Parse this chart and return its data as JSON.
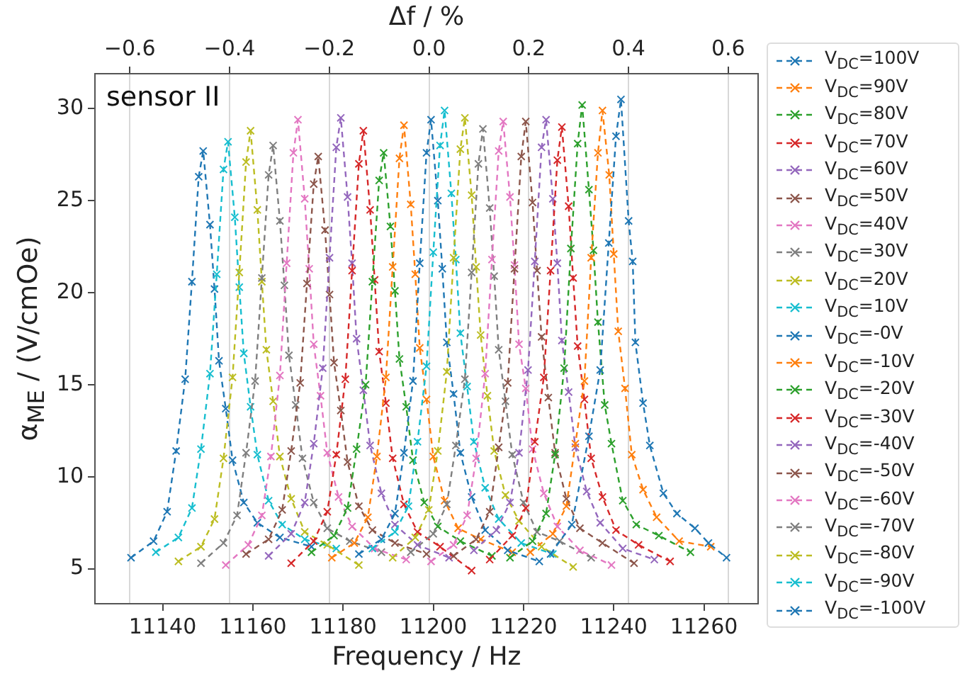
{
  "chart_data": {
    "type": "line",
    "xlabel": "Frequency / Hz",
    "ylabel": "α$_{ME}$ / (V/cmOe)",
    "x2label": "Δf / %",
    "xlim": [
      11125,
      11272
    ],
    "xticks": [
      11140,
      11160,
      11180,
      11200,
      11220,
      11240,
      11260
    ],
    "x2lim": [
      -0.67,
      0.66
    ],
    "x2ticks": [
      {
        "value": -0.6,
        "label": "−0.6"
      },
      {
        "value": -0.4,
        "label": "−0.4"
      },
      {
        "value": -0.2,
        "label": "−0.2"
      },
      {
        "value": 0,
        "label": "0.0"
      },
      0.2,
      0.4,
      0.6
    ],
    "ylim": [
      3.1,
      31.9
    ],
    "yticks": [
      5,
      10,
      15,
      20,
      25,
      30
    ],
    "grid": "x",
    "legend": "right",
    "marker": "cross",
    "line_style": "dashed",
    "annotations": [
      "sensor II"
    ],
    "series": [
      {
        "name": "V$_{DC}$=100V",
        "color": "#1f77b4",
        "x": [
          11226,
          11230.7,
          11234.5,
          11237,
          11238.9,
          11240.5,
          11241.6,
          11243.3,
          11244.2,
          11244.8,
          11246.5,
          11248,
          11251,
          11254,
          11258,
          11261,
          11265
        ],
        "values": [
          5.8,
          7.4,
          12.2,
          15.8,
          22.7,
          28.5,
          30.5,
          23.9,
          21.7,
          17.3,
          14.0,
          11.7,
          9.1,
          8.0,
          7.2,
          6.4,
          5.6
        ]
      },
      {
        "name": "V$_{DC}$=90V",
        "color": "#ff7f0e",
        "x": [
          11221.5,
          11226.5,
          11229.5,
          11231.5,
          11233.5,
          11235,
          11236.5,
          11237.5,
          11239,
          11240,
          11241,
          11242.5,
          11244,
          11246.5,
          11249.5,
          11254.5,
          11261.5
        ],
        "values": [
          5.9,
          6.9,
          8.4,
          11.8,
          15.2,
          21.9,
          27.6,
          29.9,
          26.4,
          22.1,
          17.9,
          14.8,
          11.2,
          9.3,
          7.8,
          6.5,
          6.2
        ]
      },
      {
        "name": "V$_{DC}$=80V",
        "color": "#2ca02c",
        "x": [
          11217,
          11222,
          11225,
          11227,
          11229,
          11230.5,
          11232,
          11233,
          11234.5,
          11235.5,
          11236.5,
          11238,
          11239.5,
          11242,
          11245,
          11250,
          11257
        ],
        "values": [
          5.6,
          6.5,
          8.0,
          11.2,
          15.9,
          22.4,
          28.1,
          30.2,
          25.6,
          22.3,
          18.4,
          13.9,
          11.8,
          8.7,
          7.4,
          6.8,
          5.9
        ]
      },
      {
        "name": "V$_{DC}$=70V",
        "color": "#d62728",
        "x": [
          11212.5,
          11217.5,
          11220.5,
          11222.5,
          11224.5,
          11226,
          11227.5,
          11228.5,
          11230,
          11231,
          11232,
          11233.5,
          11235,
          11237.5,
          11240.5,
          11245.5,
          11252.5
        ],
        "values": [
          5.5,
          6.8,
          8.3,
          11.9,
          15.4,
          21.2,
          27.2,
          29.0,
          24.7,
          20.8,
          17.1,
          14.2,
          11.0,
          8.9,
          7.1,
          6.3,
          5.4
        ]
      },
      {
        "name": "V$_{DC}$=60V",
        "color": "#9467bd",
        "x": [
          11209,
          11214,
          11217,
          11219,
          11221,
          11222.5,
          11224,
          11225,
          11226.5,
          11227.5,
          11228.5,
          11230,
          11231.5,
          11234,
          11237,
          11242,
          11249
        ],
        "values": [
          6.0,
          7.1,
          8.6,
          11.3,
          15.8,
          21.7,
          27.9,
          29.4,
          25.1,
          21.6,
          17.4,
          14.6,
          11.6,
          9.2,
          7.5,
          6.1,
          5.5
        ]
      },
      {
        "name": "V$_{DC}$=50V",
        "color": "#8c564b",
        "x": [
          11204.5,
          11209.5,
          11212.5,
          11214.5,
          11216.5,
          11218,
          11219.5,
          11220.5,
          11222,
          11223,
          11224,
          11225.5,
          11227,
          11229.5,
          11232.5,
          11237.5,
          11244.5
        ],
        "values": [
          5.7,
          6.6,
          8.1,
          11.6,
          15.1,
          21.3,
          27.4,
          29.3,
          24.9,
          21.2,
          17.6,
          14.3,
          11.3,
          8.8,
          7.2,
          6.4,
          5.3
        ]
      },
      {
        "name": "V$_{DC}$=40V",
        "color": "#e377c2",
        "x": [
          11199.5,
          11204.5,
          11207.5,
          11209.5,
          11211.5,
          11213,
          11214.5,
          11215.5,
          11217,
          11218,
          11219,
          11220.5,
          11222,
          11224.5,
          11227.5,
          11232.5,
          11239.5
        ],
        "values": [
          5.4,
          6.3,
          7.9,
          11.0,
          15.6,
          21.8,
          27.7,
          29.3,
          25.2,
          21.5,
          17.2,
          14.8,
          11.5,
          9.1,
          7.3,
          6.0,
          5.2
        ]
      },
      {
        "name": "V$_{DC}$=30V",
        "color": "#7f7f7f",
        "x": [
          11195,
          11200,
          11203,
          11205,
          11207,
          11208.5,
          11210,
          11211,
          11212.5,
          11213.5,
          11214.5,
          11216,
          11217.5,
          11220,
          11223,
          11228,
          11235
        ],
        "values": [
          5.9,
          6.9,
          8.5,
          11.7,
          15.3,
          21.1,
          27.0,
          28.9,
          24.6,
          20.9,
          16.9,
          14.1,
          11.2,
          8.6,
          7.0,
          6.5,
          5.6
        ]
      },
      {
        "name": "V$_{DC}$=20V",
        "color": "#bcbd22",
        "x": [
          11191,
          11196,
          11199,
          11201,
          11203,
          11204.5,
          11206,
          11207,
          11208.5,
          11209.5,
          11210.5,
          11212,
          11213.5,
          11216,
          11219,
          11224,
          11231
        ],
        "values": [
          5.6,
          6.7,
          8.2,
          11.4,
          15.7,
          21.9,
          27.8,
          29.5,
          25.3,
          21.4,
          17.7,
          14.4,
          11.4,
          9.0,
          7.6,
          6.2,
          5.1
        ]
      },
      {
        "name": "V$_{DC}$=10V",
        "color": "#17becf",
        "x": [
          11186.5,
          11191.5,
          11194.5,
          11196.5,
          11198.5,
          11200,
          11201.5,
          11202.5,
          11204,
          11205,
          11206,
          11207.5,
          11209,
          11211.5,
          11214.5,
          11219.5,
          11226.5
        ],
        "values": [
          6.1,
          7.0,
          8.4,
          11.9,
          16.0,
          22.2,
          28.0,
          29.9,
          25.4,
          21.8,
          17.8,
          14.9,
          11.9,
          9.4,
          7.7,
          6.4,
          5.8
        ]
      },
      {
        "name": "V$_{DC}$=-0V",
        "color": "#1f77b4",
        "x": [
          11183.5,
          11188.5,
          11191.5,
          11193.5,
          11195.5,
          11197,
          11198.5,
          11199.5,
          11201,
          11202,
          11203,
          11204.5,
          11206,
          11208.5,
          11211.5,
          11216.5,
          11223.5
        ],
        "values": [
          5.8,
          6.6,
          8.0,
          11.3,
          15.2,
          21.6,
          27.6,
          29.4,
          25.0,
          21.3,
          17.3,
          14.5,
          11.3,
          8.9,
          7.1,
          6.0,
          5.4
        ]
      },
      {
        "name": "V$_{DC}$=-10V",
        "color": "#ff7f0e",
        "x": [
          11177.5,
          11182.5,
          11185.5,
          11187.5,
          11189.5,
          11191,
          11192.5,
          11193.5,
          11195,
          11196,
          11197,
          11198.5,
          11200,
          11202.5,
          11205.5,
          11210.5,
          11217.5
        ],
        "values": [
          5.6,
          6.4,
          7.8,
          11.1,
          15.4,
          21.4,
          27.3,
          29.1,
          24.8,
          21.0,
          17.0,
          14.2,
          11.1,
          8.7,
          7.2,
          6.6,
          5.9
        ]
      },
      {
        "name": "V$_{DC}$=-20V",
        "color": "#2ca02c",
        "x": [
          11173,
          11178,
          11181,
          11183,
          11185,
          11186.5,
          11188,
          11189,
          11190.5,
          11191.5,
          11192.5,
          11194,
          11195.5,
          11198,
          11201,
          11206,
          11213
        ],
        "values": [
          5.9,
          6.8,
          8.3,
          11.5,
          15.0,
          20.6,
          26.1,
          27.6,
          23.6,
          20.1,
          16.4,
          13.8,
          10.9,
          8.6,
          7.3,
          6.5,
          5.7
        ]
      },
      {
        "name": "V$_{DC}$=-30V",
        "color": "#d62728",
        "x": [
          11168.5,
          11173.5,
          11176.5,
          11178.5,
          11180.5,
          11182,
          11183.5,
          11184.5,
          11186,
          11187,
          11188,
          11189.5,
          11191,
          11193.5,
          11196.5,
          11201.5,
          11208.5
        ],
        "values": [
          5.3,
          6.5,
          8.1,
          11.2,
          15.3,
          21.2,
          27.0,
          28.8,
          24.5,
          20.7,
          16.8,
          14.0,
          11.0,
          8.5,
          7.0,
          6.2,
          4.9
        ]
      },
      {
        "name": "V$_{DC}$=-40V",
        "color": "#9467bd",
        "x": [
          11163.5,
          11168.5,
          11171.5,
          11173.5,
          11175.5,
          11177,
          11178.5,
          11179.5,
          11181,
          11182,
          11183,
          11184.5,
          11186,
          11188.5,
          11191.5,
          11196.5,
          11203.5
        ],
        "values": [
          5.7,
          6.9,
          8.6,
          11.8,
          15.9,
          21.9,
          27.9,
          29.5,
          25.2,
          21.6,
          17.5,
          14.7,
          11.7,
          9.1,
          7.4,
          6.3,
          5.6
        ]
      },
      {
        "name": "V$_{DC}$=-50V",
        "color": "#8c564b",
        "x": [
          11158.5,
          11163.5,
          11166.5,
          11168.5,
          11170.5,
          11172,
          11173.5,
          11174.5,
          11176,
          11177,
          11178,
          11179.5,
          11181,
          11183.5,
          11186.5,
          11191.5,
          11198.5
        ],
        "values": [
          5.8,
          6.6,
          8.2,
          11.4,
          15.1,
          20.5,
          25.9,
          27.4,
          23.4,
          19.9,
          16.2,
          13.6,
          10.8,
          8.4,
          7.1,
          6.4,
          5.8
        ]
      },
      {
        "name": "V$_{DC}$=-60V",
        "color": "#e377c2",
        "x": [
          11154,
          11159,
          11162,
          11164,
          11166,
          11167.5,
          11169,
          11170,
          11171.5,
          11172.5,
          11173.5,
          11175,
          11176.5,
          11179,
          11182,
          11187,
          11194
        ],
        "values": [
          5.2,
          6.3,
          7.9,
          11.1,
          15.5,
          21.6,
          27.6,
          29.4,
          25.1,
          21.3,
          17.2,
          14.4,
          11.3,
          8.9,
          7.3,
          6.1,
          5.5
        ]
      },
      {
        "name": "V$_{DC}$=-70V",
        "color": "#7f7f7f",
        "x": [
          11148.5,
          11153.5,
          11156.5,
          11158.5,
          11160.5,
          11162,
          11163.5,
          11164.5,
          11166,
          11167,
          11168,
          11169.5,
          11171,
          11173.5,
          11176.5,
          11181.5,
          11188.5
        ],
        "values": [
          5.3,
          6.4,
          7.9,
          11.3,
          15.2,
          20.8,
          26.4,
          28.0,
          23.9,
          20.4,
          16.6,
          13.9,
          11.0,
          8.6,
          7.2,
          6.5,
          5.9
        ]
      },
      {
        "name": "V$_{DC}$=-80V",
        "color": "#bcbd22",
        "x": [
          11143.5,
          11148.5,
          11151.5,
          11153.5,
          11155.5,
          11157,
          11158.5,
          11159.5,
          11161,
          11162,
          11163,
          11164.5,
          11166,
          11168.5,
          11171.5,
          11176.5,
          11183.5
        ],
        "values": [
          5.4,
          6.2,
          7.7,
          11.0,
          15.4,
          21.1,
          27.1,
          28.8,
          24.5,
          20.6,
          16.9,
          14.1,
          11.1,
          8.8,
          7.0,
          6.3,
          5.2
        ]
      },
      {
        "name": "V$_{DC}$=-90V",
        "color": "#17becf",
        "x": [
          11138.5,
          11143.5,
          11146.5,
          11148.5,
          11150.5,
          11152,
          11153.5,
          11154.5,
          11156,
          11157,
          11158,
          11159.5,
          11161,
          11163.5,
          11166.5,
          11171.5,
          11178.5
        ],
        "values": [
          5.9,
          6.7,
          8.3,
          11.5,
          15.6,
          21.0,
          26.7,
          28.2,
          24.1,
          20.3,
          16.7,
          13.8,
          11.2,
          8.7,
          7.4,
          6.6,
          6.1
        ]
      },
      {
        "name": "V$_{DC}$=-100V",
        "color": "#1f77b4",
        "x": [
          11133,
          11138,
          11141,
          11143,
          11145,
          11146.5,
          11148,
          11149,
          11150.5,
          11151.5,
          11152.5,
          11154,
          11155.5,
          11158,
          11161,
          11166,
          11173
        ],
        "values": [
          5.6,
          6.5,
          8.1,
          11.4,
          15.3,
          20.6,
          26.3,
          27.7,
          23.7,
          20.2,
          16.3,
          13.7,
          10.9,
          8.6,
          7.5,
          6.7,
          6.2
        ]
      }
    ]
  }
}
